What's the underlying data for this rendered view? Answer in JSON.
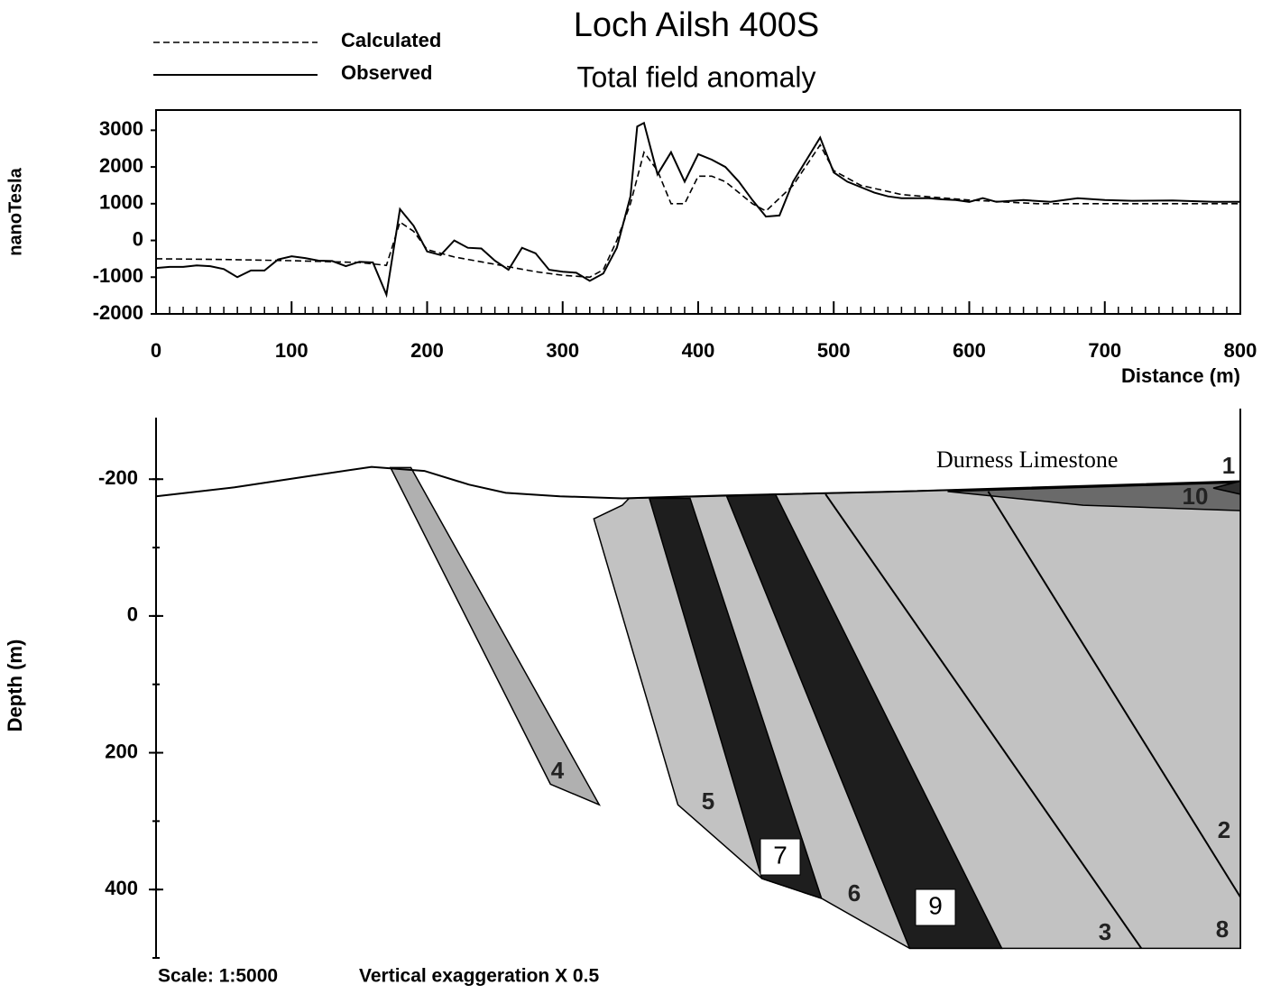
{
  "chart_data": [
    {
      "type": "line",
      "title": "Loch Ailsh 400S",
      "subtitle": "Total field anomaly",
      "x_label": "Distance (m)",
      "y_label": "nanoTesla",
      "xlim": [
        0,
        800
      ],
      "xticks": [
        0,
        100,
        200,
        300,
        400,
        500,
        600,
        700,
        800
      ],
      "xminor": 10,
      "ylim": [
        -2000,
        3550
      ],
      "yticks": [
        -2000,
        -1000,
        0,
        1000,
        2000,
        3000
      ],
      "series": [
        {
          "name": "Calculated",
          "color": "#000000",
          "dash": true,
          "x": [
            0,
            50,
            100,
            150,
            170,
            180,
            190,
            200,
            220,
            250,
            280,
            300,
            320,
            330,
            340,
            350,
            360,
            370,
            380,
            390,
            400,
            410,
            420,
            440,
            450,
            470,
            490,
            500,
            520,
            550,
            600,
            650,
            700,
            800
          ],
          "values": [
            -500,
            -520,
            -550,
            -600,
            -680,
            500,
            250,
            -250,
            -450,
            -650,
            -850,
            -950,
            -1000,
            -800,
            0,
            1000,
            2400,
            1900,
            1000,
            1000,
            1750,
            1750,
            1600,
            1000,
            800,
            1500,
            2600,
            1900,
            1500,
            1250,
            1100,
            1000,
            1000,
            1000
          ]
        },
        {
          "name": "Observed",
          "color": "#000000",
          "dash": false,
          "x": [
            0,
            10,
            20,
            30,
            40,
            50,
            60,
            70,
            80,
            90,
            100,
            110,
            120,
            130,
            140,
            150,
            160,
            170,
            180,
            190,
            200,
            210,
            220,
            230,
            240,
            250,
            260,
            270,
            280,
            290,
            300,
            310,
            320,
            330,
            340,
            350,
            355,
            360,
            370,
            380,
            390,
            400,
            410,
            420,
            430,
            440,
            450,
            460,
            470,
            480,
            490,
            500,
            510,
            520,
            530,
            540,
            550,
            560,
            570,
            580,
            590,
            600,
            610,
            620,
            640,
            660,
            680,
            700,
            720,
            750,
            780,
            800
          ],
          "values": [
            -750,
            -720,
            -720,
            -680,
            -700,
            -780,
            -1000,
            -820,
            -820,
            -520,
            -430,
            -480,
            -550,
            -560,
            -700,
            -580,
            -600,
            -1480,
            850,
            400,
            -300,
            -400,
            0,
            -200,
            -220,
            -550,
            -800,
            -200,
            -350,
            -800,
            -850,
            -880,
            -1100,
            -900,
            -200,
            1200,
            3100,
            3200,
            1800,
            2400,
            1600,
            2350,
            2200,
            2000,
            1600,
            1100,
            650,
            680,
            1600,
            2200,
            2800,
            1850,
            1600,
            1450,
            1300,
            1200,
            1150,
            1150,
            1150,
            1120,
            1100,
            1050,
            1150,
            1050,
            1100,
            1050,
            1150,
            1100,
            1080,
            1090,
            1050,
            1050
          ]
        }
      ]
    },
    {
      "type": "section",
      "y_label": "Depth (m)",
      "xlim": [
        0,
        800
      ],
      "ylim": [
        -290,
        500
      ],
      "yticks": [
        -200,
        0,
        200,
        400
      ],
      "yminor": 100,
      "annotation": "Durness Limestone",
      "scale_note": "Scale: 1:5000",
      "exaggeration_note": "Vertical exaggeration X 0.5",
      "surface": {
        "x": [
          0,
          58,
          111,
          159,
          198,
          231,
          258,
          298,
          344,
          417,
          550,
          800
        ],
        "depth": [
          -175,
          -188,
          -204,
          -218,
          -212,
          -192,
          -180,
          -175,
          -172,
          -176,
          -182,
          -197
        ]
      },
      "units": [
        {
          "label": "5",
          "color": "#c2c2c2",
          "x": [
            323,
            344,
            349,
            800,
            800,
            556,
            491,
            447,
            385
          ],
          "depth": [
            -142,
            -162,
            -172,
            -195,
            486,
            486,
            413,
            384,
            276
          ]
        },
        {
          "label": "7",
          "color": "#1e1e1e",
          "x": [
            364,
            394,
            491,
            447
          ],
          "depth": [
            -172,
            -172,
            413,
            384
          ]
        },
        {
          "label": "9",
          "color": "#1e1e1e",
          "x": [
            421,
            457,
            624,
            556
          ],
          "depth": [
            -175,
            -178,
            486,
            486
          ]
        },
        {
          "label": "10",
          "color": "#6a6a6a",
          "x": [
            584,
            800,
            800,
            684
          ],
          "depth": [
            -182,
            -195,
            -154,
            -162
          ]
        },
        {
          "label": "1",
          "color": "#2e2e2e",
          "x": [
            780,
            800,
            800
          ],
          "depth": [
            -187,
            -197,
            -178
          ]
        },
        {
          "label": "4",
          "color": "#b0b0b0",
          "x": [
            173,
            188,
            327,
            291
          ],
          "depth": [
            -217,
            -217,
            276,
            246
          ]
        },
        {
          "label": "6"
        },
        {
          "label": "3"
        },
        {
          "label": "2"
        },
        {
          "label": "8"
        }
      ],
      "contacts": [
        {
          "x": [
            494,
            727
          ],
          "depth": [
            -178,
            486
          ]
        },
        {
          "x": [
            614,
            800
          ],
          "depth": [
            -182,
            411
          ]
        }
      ]
    }
  ]
}
